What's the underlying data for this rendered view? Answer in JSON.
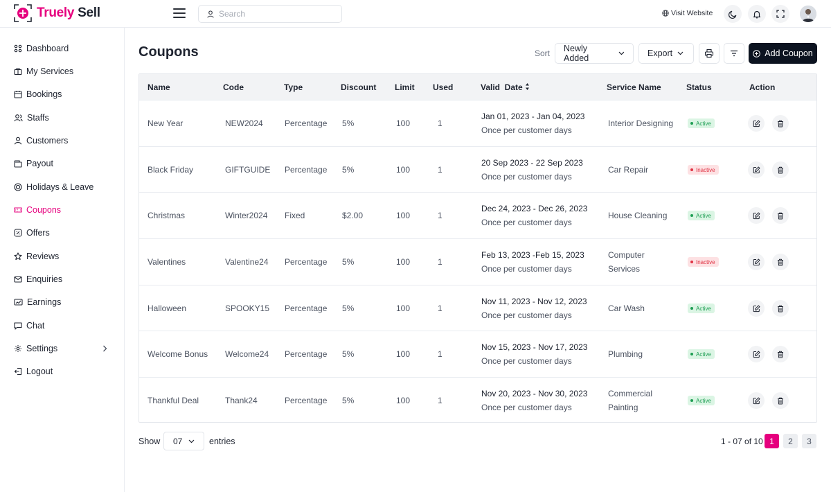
{
  "brand": {
    "name_part1": "Truely",
    "name_part2": " Sell",
    "accent": "#e6007e"
  },
  "header": {
    "search_placeholder": "Search",
    "visit_website": "Visit Website",
    "icons": [
      "menu-icon",
      "search-icon",
      "globe-icon",
      "moon-icon",
      "bell-icon",
      "fullscreen-icon",
      "avatar"
    ]
  },
  "sidebar": {
    "items": [
      {
        "label": "Dashboard",
        "icon": "dashboard-icon"
      },
      {
        "label": "My Services",
        "icon": "briefcase-icon"
      },
      {
        "label": "Bookings",
        "icon": "calendar-icon"
      },
      {
        "label": "Staffs",
        "icon": "users-icon"
      },
      {
        "label": "Customers",
        "icon": "user-icon"
      },
      {
        "label": "Payout",
        "icon": "wallet-icon"
      },
      {
        "label": "Holidays & Leave",
        "icon": "holiday-icon"
      },
      {
        "label": "Coupons",
        "icon": "coupon-icon",
        "active": true
      },
      {
        "label": "Offers",
        "icon": "offer-icon"
      },
      {
        "label": "Reviews",
        "icon": "star-icon"
      },
      {
        "label": "Enquiries",
        "icon": "mail-icon"
      },
      {
        "label": "Earnings",
        "icon": "earnings-icon"
      },
      {
        "label": "Chat",
        "icon": "chat-icon"
      },
      {
        "label": "Settings",
        "icon": "gear-icon"
      },
      {
        "label": "Logout",
        "icon": "logout-icon"
      }
    ]
  },
  "main": {
    "title": "Coupons",
    "sort_label": "Sort",
    "sort_value": "Newly Added",
    "export_label": "Export",
    "add_label": "Add Coupon"
  },
  "table": {
    "columns": [
      "Name",
      "Code",
      "Type",
      "Discount",
      "Limit",
      "Used",
      "Valid  Date",
      "Service Name",
      "Status",
      "Action"
    ],
    "rows": [
      {
        "name": "New Year",
        "code": "NEW2024",
        "type": "Percentage",
        "discount": "5%",
        "limit": "100",
        "used": "1",
        "date": "Jan 01, 2023 - Jan 04, 2023",
        "date_note": "Once per customer days",
        "service1": "Interior Designing",
        "service2": "",
        "status": "Active"
      },
      {
        "name": "Black Friday",
        "code": "GIFTGUIDE",
        "type": "Percentage",
        "discount": "5%",
        "limit": "100",
        "used": "1",
        "date": "20 Sep 2023 - 22 Sep 2023",
        "date_note": "Once per customer days",
        "service1": "Car Repair",
        "service2": "",
        "status": "Inactive"
      },
      {
        "name": "Christmas",
        "code": "Winter2024",
        "type": "Fixed",
        "discount": "$2.00",
        "limit": "100",
        "used": "1",
        "date": "Dec 24, 2023 - Dec 26, 2023",
        "date_note": "Once per customer days",
        "service1": "House Cleaning",
        "service2": "",
        "status": "Active"
      },
      {
        "name": "Valentines",
        "code": "Valentine24",
        "type": "Percentage",
        "discount": "5%",
        "limit": "100",
        "used": "1",
        "date": "Feb 13, 2023 -Feb 15, 2023",
        "date_note": "Once per customer days",
        "service1": "Computer",
        "service2": "Services",
        "status": "Inactive"
      },
      {
        "name": "Halloween",
        "code": "SPOOKY15",
        "type": "Percentage",
        "discount": "5%",
        "limit": "100",
        "used": "1",
        "date": "Nov 11, 2023 - Nov 12, 2023",
        "date_note": "Once per customer days",
        "service1": "Car Wash",
        "service2": "",
        "status": "Active"
      },
      {
        "name": "Welcome Bonus",
        "code": "Welcome24",
        "type": "Percentage",
        "discount": "5%",
        "limit": "100",
        "used": "1",
        "date": "Nov 15, 2023 - Nov 17, 2023",
        "date_note": "Once per customer days",
        "service1": "Plumbing",
        "service2": "",
        "status": "Active"
      },
      {
        "name": "Thankful Deal",
        "code": "Thank24",
        "type": "Percentage",
        "discount": "5%",
        "limit": "100",
        "used": "1",
        "date": "Nov 20, 2023 - Nov 30, 2023",
        "date_note": "Once per customer days",
        "service1": "Commercial",
        "service2": "Painting",
        "status": "Active"
      }
    ]
  },
  "footer": {
    "show_label": "Show",
    "entries_value": "07",
    "entries_label": "entries",
    "range_text": "1 - 07 of 10",
    "pages": [
      "1",
      "2",
      "3"
    ],
    "current_page": "1"
  }
}
